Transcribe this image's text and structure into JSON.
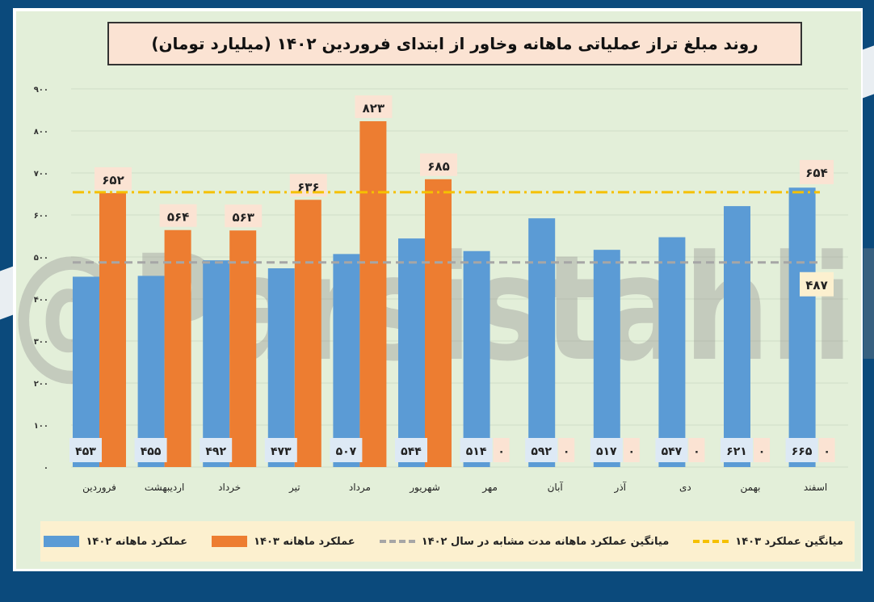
{
  "chart_data": {
    "type": "bar",
    "title": "روند مبلغ تراز عملیاتی ماهانه وخاور از ابتدای فروردین ۱۴۰۲ (میلیارد تومان)",
    "categories": [
      "فروردین",
      "اردیبهشت",
      "خرداد",
      "تیر",
      "مرداد",
      "شهریور",
      "مهر",
      "آبان",
      "آذر",
      "دی",
      "بهمن",
      "اسفند"
    ],
    "series": [
      {
        "name": "عملکرد ماهانه ۱۴۰۲",
        "values": [
          453,
          455,
          492,
          473,
          507,
          544,
          514,
          592,
          517,
          547,
          621,
          665
        ],
        "color": "#5b9bd5"
      },
      {
        "name": "عملکرد ماهانه ۱۴۰۳",
        "values": [
          652,
          564,
          563,
          636,
          823,
          685,
          0,
          0,
          0,
          0,
          0,
          0
        ],
        "color": "#ed7d31"
      }
    ],
    "reference_lines": [
      {
        "name": "میانگین عملکرد ماهانه مدت مشابه در سال ۱۴۰۲",
        "value": 487,
        "label": "۴۸۷",
        "color": "#a6a6a6",
        "style": "dashed"
      },
      {
        "name": "میانگین عملکرد ۱۴۰۳",
        "value": 654,
        "label": "۶۵۴",
        "color": "#f5c000",
        "style": "dash-dot"
      }
    ],
    "ylim": [
      0,
      900
    ],
    "yticks": [
      0,
      100,
      200,
      300,
      400,
      500,
      600,
      700,
      800,
      900
    ],
    "ytick_labels": [
      "۰",
      "۱۰۰",
      "۲۰۰",
      "۳۰۰",
      "۴۰۰",
      "۵۰۰",
      "۶۰۰",
      "۷۰۰",
      "۸۰۰",
      "۹۰۰"
    ],
    "grid": true,
    "legend": "bottom",
    "xlabel": "",
    "ylabel": ""
  },
  "watermark": "@Parsistahlil",
  "colors": {
    "background": "#0b4a7c",
    "plot": "#e3efd9",
    "legend": "#fcf0cf"
  }
}
